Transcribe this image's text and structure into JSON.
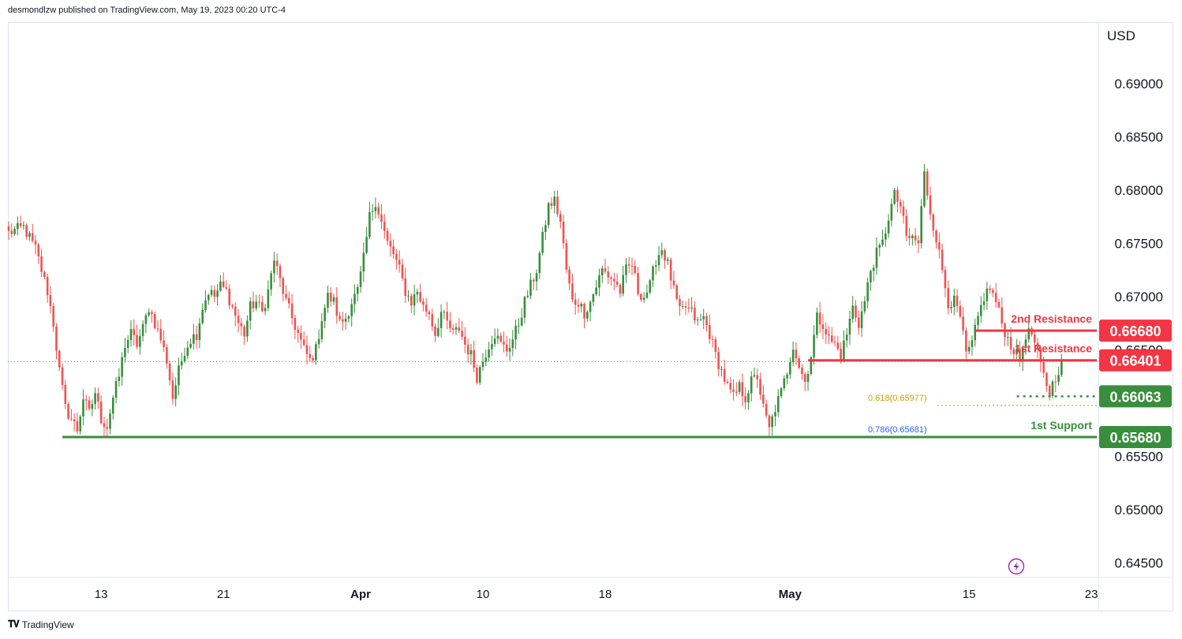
{
  "header": {
    "publisher": "desmondlzw published on TradingView.com, May 19, 2023 00:20 UTC-4"
  },
  "footer": {
    "brand": "TradingView"
  },
  "chart_data": {
    "type": "candlestick",
    "currency_label": "USD",
    "y_ticks": [
      "0.69000",
      "0.68500",
      "0.68000",
      "0.67500",
      "0.67000",
      "0.66500",
      "0.65500",
      "0.65000",
      "0.64500"
    ],
    "ylim": [
      0.6435,
      0.6925
    ],
    "x_ticks": [
      {
        "label": "13",
        "bold": false,
        "bar": 31
      },
      {
        "label": "21",
        "bold": false,
        "bar": 72
      },
      {
        "label": "Apr",
        "bold": true,
        "bar": 118
      },
      {
        "label": "10",
        "bold": false,
        "bar": 159
      },
      {
        "label": "18",
        "bold": false,
        "bar": 200
      },
      {
        "label": "May",
        "bold": true,
        "bar": 262
      },
      {
        "label": "15",
        "bold": false,
        "bar": 322
      },
      {
        "label": "23",
        "bold": false,
        "bar": 363
      }
    ],
    "levels": [
      {
        "name": "2nd Resistance",
        "value": 0.6668,
        "tag": "0.66680",
        "color": "#f23645"
      },
      {
        "name": "1st Resistance",
        "value": 0.66401,
        "tag": "0.66401",
        "color": "#f23645"
      },
      {
        "name": "",
        "value": 0.66063,
        "tag": "0.66063",
        "color": "#388e3c"
      },
      {
        "name": "1st Support",
        "value": 0.6568,
        "tag": "0.65680",
        "color": "#388e3c"
      }
    ],
    "fib_levels": [
      {
        "label": "0.618(0.65977)",
        "value": 0.65977,
        "color": "#c9a000"
      },
      {
        "label": "0.786(0.65681)",
        "value": 0.65681,
        "color": "#2962ff"
      }
    ],
    "last_price": 0.6639,
    "bull_color": "#388e3c",
    "bear_color": "#ef5350",
    "path": [
      [
        0,
        0.676
      ],
      [
        5,
        0.6765
      ],
      [
        9,
        0.6745
      ],
      [
        13,
        0.6705
      ],
      [
        15,
        0.6675
      ],
      [
        17,
        0.663
      ],
      [
        19,
        0.6595
      ],
      [
        21,
        0.6585
      ],
      [
        23,
        0.6575
      ],
      [
        25,
        0.6605
      ],
      [
        27,
        0.659
      ],
      [
        29,
        0.661
      ],
      [
        31,
        0.6585
      ],
      [
        33,
        0.6578
      ],
      [
        35,
        0.6605
      ],
      [
        37,
        0.6625
      ],
      [
        39,
        0.6655
      ],
      [
        41,
        0.6665
      ],
      [
        43,
        0.6655
      ],
      [
        45,
        0.667
      ],
      [
        47,
        0.669
      ],
      [
        49,
        0.6675
      ],
      [
        51,
        0.666
      ],
      [
        53,
        0.664
      ],
      [
        55,
        0.6605
      ],
      [
        57,
        0.663
      ],
      [
        59,
        0.665
      ],
      [
        61,
        0.666
      ],
      [
        63,
        0.6665
      ],
      [
        65,
        0.669
      ],
      [
        67,
        0.6705
      ],
      [
        69,
        0.67
      ],
      [
        71,
        0.671
      ],
      [
        73,
        0.6705
      ],
      [
        75,
        0.669
      ],
      [
        77,
        0.6675
      ],
      [
        79,
        0.6665
      ],
      [
        81,
        0.669
      ],
      [
        83,
        0.6695
      ],
      [
        85,
        0.6685
      ],
      [
        87,
        0.6705
      ],
      [
        89,
        0.6735
      ],
      [
        91,
        0.6715
      ],
      [
        93,
        0.6695
      ],
      [
        95,
        0.668
      ],
      [
        97,
        0.6665
      ],
      [
        99,
        0.665
      ],
      [
        101,
        0.664
      ],
      [
        103,
        0.665
      ],
      [
        105,
        0.668
      ],
      [
        107,
        0.67
      ],
      [
        109,
        0.6695
      ],
      [
        111,
        0.6675
      ],
      [
        113,
        0.668
      ],
      [
        115,
        0.6695
      ],
      [
        117,
        0.6705
      ],
      [
        119,
        0.6735
      ],
      [
        121,
        0.6775
      ],
      [
        123,
        0.679
      ],
      [
        125,
        0.677
      ],
      [
        127,
        0.675
      ],
      [
        129,
        0.674
      ],
      [
        131,
        0.6725
      ],
      [
        133,
        0.6705
      ],
      [
        135,
        0.6695
      ],
      [
        137,
        0.6705
      ],
      [
        139,
        0.669
      ],
      [
        141,
        0.6685
      ],
      [
        143,
        0.6665
      ],
      [
        145,
        0.6685
      ],
      [
        147,
        0.6675
      ],
      [
        149,
        0.6665
      ],
      [
        151,
        0.667
      ],
      [
        153,
        0.6655
      ],
      [
        155,
        0.6645
      ],
      [
        157,
        0.6625
      ],
      [
        159,
        0.664
      ],
      [
        161,
        0.6655
      ],
      [
        163,
        0.6665
      ],
      [
        165,
        0.6655
      ],
      [
        167,
        0.665
      ],
      [
        169,
        0.666
      ],
      [
        171,
        0.6675
      ],
      [
        173,
        0.6695
      ],
      [
        175,
        0.671
      ],
      [
        177,
        0.6725
      ],
      [
        179,
        0.6755
      ],
      [
        181,
        0.6785
      ],
      [
        183,
        0.679
      ],
      [
        185,
        0.677
      ],
      [
        187,
        0.6725
      ],
      [
        189,
        0.6695
      ],
      [
        191,
        0.6695
      ],
      [
        193,
        0.6685
      ],
      [
        195,
        0.6695
      ],
      [
        197,
        0.671
      ],
      [
        199,
        0.6725
      ],
      [
        201,
        0.672
      ],
      [
        203,
        0.6715
      ],
      [
        205,
        0.6705
      ],
      [
        207,
        0.6725
      ],
      [
        209,
        0.673
      ],
      [
        211,
        0.6705
      ],
      [
        213,
        0.67
      ],
      [
        215,
        0.671
      ],
      [
        217,
        0.6735
      ],
      [
        219,
        0.6745
      ],
      [
        221,
        0.673
      ],
      [
        223,
        0.6705
      ],
      [
        225,
        0.6685
      ],
      [
        227,
        0.669
      ],
      [
        229,
        0.6685
      ],
      [
        231,
        0.6675
      ],
      [
        233,
        0.668
      ],
      [
        235,
        0.6665
      ],
      [
        237,
        0.6645
      ],
      [
        239,
        0.663
      ],
      [
        241,
        0.6615
      ],
      [
        243,
        0.6605
      ],
      [
        245,
        0.6615
      ],
      [
        247,
        0.6605
      ],
      [
        249,
        0.662
      ],
      [
        251,
        0.6625
      ],
      [
        253,
        0.6595
      ],
      [
        255,
        0.6575
      ],
      [
        257,
        0.6595
      ],
      [
        259,
        0.661
      ],
      [
        261,
        0.663
      ],
      [
        263,
        0.6655
      ],
      [
        265,
        0.6635
      ],
      [
        267,
        0.662
      ],
      [
        269,
        0.6645
      ],
      [
        271,
        0.668
      ],
      [
        273,
        0.6675
      ],
      [
        275,
        0.666
      ],
      [
        277,
        0.6655
      ],
      [
        279,
        0.6645
      ],
      [
        281,
        0.6665
      ],
      [
        283,
        0.669
      ],
      [
        285,
        0.6675
      ],
      [
        287,
        0.6695
      ],
      [
        289,
        0.6725
      ],
      [
        291,
        0.674
      ],
      [
        293,
        0.675
      ],
      [
        295,
        0.6775
      ],
      [
        297,
        0.6795
      ],
      [
        299,
        0.6785
      ],
      [
        301,
        0.6755
      ],
      [
        303,
        0.6755
      ],
      [
        305,
        0.675
      ],
      [
        307,
        0.6815
      ],
      [
        309,
        0.678
      ],
      [
        311,
        0.6755
      ],
      [
        313,
        0.6725
      ],
      [
        315,
        0.6695
      ],
      [
        317,
        0.6695
      ],
      [
        319,
        0.668
      ],
      [
        321,
        0.6645
      ],
      [
        323,
        0.6655
      ],
      [
        325,
        0.668
      ],
      [
        327,
        0.67
      ],
      [
        329,
        0.6708
      ],
      [
        331,
        0.6695
      ],
      [
        333,
        0.6675
      ],
      [
        335,
        0.666
      ],
      [
        337,
        0.665
      ],
      [
        339,
        0.664
      ],
      [
        341,
        0.6665
      ],
      [
        343,
        0.6665
      ],
      [
        345,
        0.6645
      ],
      [
        347,
        0.6625
      ],
      [
        349,
        0.661
      ],
      [
        351,
        0.6625
      ],
      [
        353,
        0.6639
      ]
    ]
  }
}
